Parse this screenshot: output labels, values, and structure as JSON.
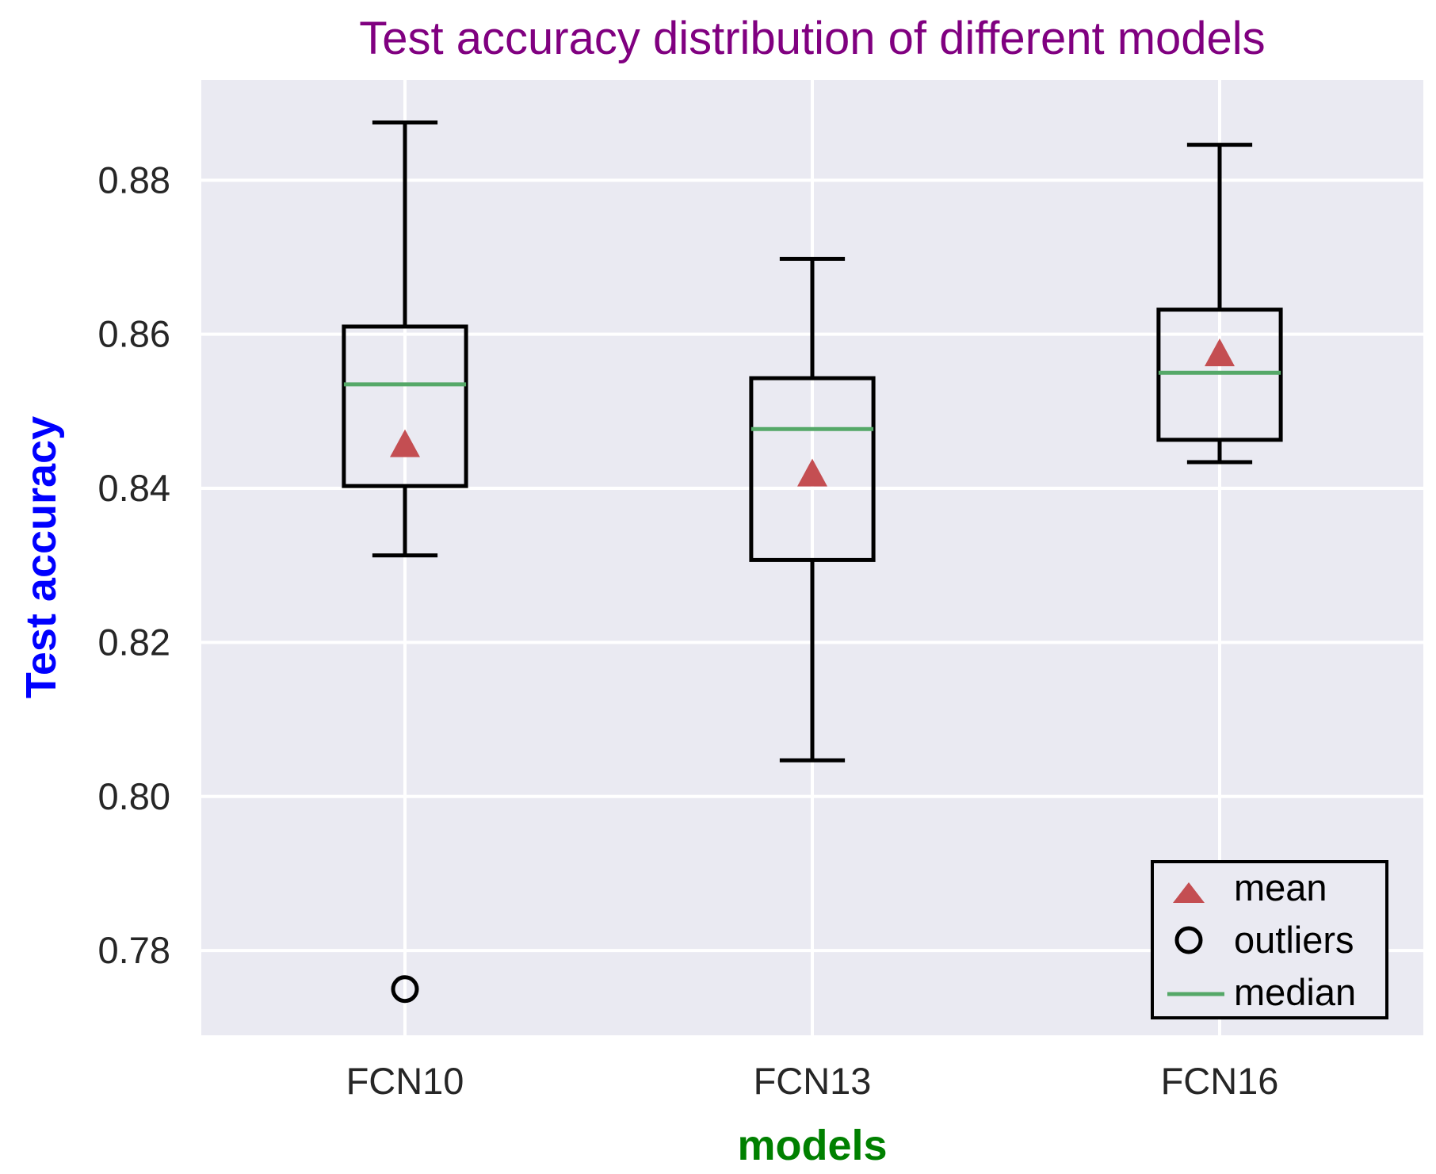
{
  "chart_data": {
    "type": "box",
    "title": "Test accuracy distribution of different models",
    "xlabel": "models",
    "ylabel": "Test accuracy",
    "ylim": [
      0.769,
      0.893
    ],
    "yticks": [
      0.78,
      0.8,
      0.82,
      0.84,
      0.86,
      0.88
    ],
    "ytick_labels": [
      "0.78",
      "0.80",
      "0.82",
      "0.84",
      "0.86",
      "0.88"
    ],
    "categories": [
      "FCN10",
      "FCN13",
      "FCN16"
    ],
    "boxes": [
      {
        "name": "FCN10",
        "whisker_low": 0.8313,
        "q1": 0.8403,
        "median": 0.8535,
        "q3": 0.861,
        "whisker_high": 0.8875,
        "mean": 0.8458,
        "outliers": [
          0.775
        ]
      },
      {
        "name": "FCN13",
        "whisker_low": 0.8047,
        "q1": 0.8307,
        "median": 0.8477,
        "q3": 0.8543,
        "whisker_high": 0.8698,
        "mean": 0.842,
        "outliers": []
      },
      {
        "name": "FCN16",
        "whisker_low": 0.8434,
        "q1": 0.8463,
        "median": 0.855,
        "q3": 0.8632,
        "whisker_high": 0.8846,
        "mean": 0.8576,
        "outliers": []
      }
    ],
    "legend": {
      "location": "lower-right",
      "entries": [
        {
          "label": "mean",
          "marker": "triangle"
        },
        {
          "label": "outliers",
          "marker": "circle"
        },
        {
          "label": "median",
          "marker": "line"
        }
      ]
    },
    "grid": true,
    "colors": {
      "background": "#eaeaf2",
      "grid": "#ffffff",
      "box": "#000000",
      "median": "#55a868",
      "mean": "#c44e52",
      "title": "#800080",
      "ylabel": "#0000ff",
      "xlabel": "#008000"
    }
  }
}
